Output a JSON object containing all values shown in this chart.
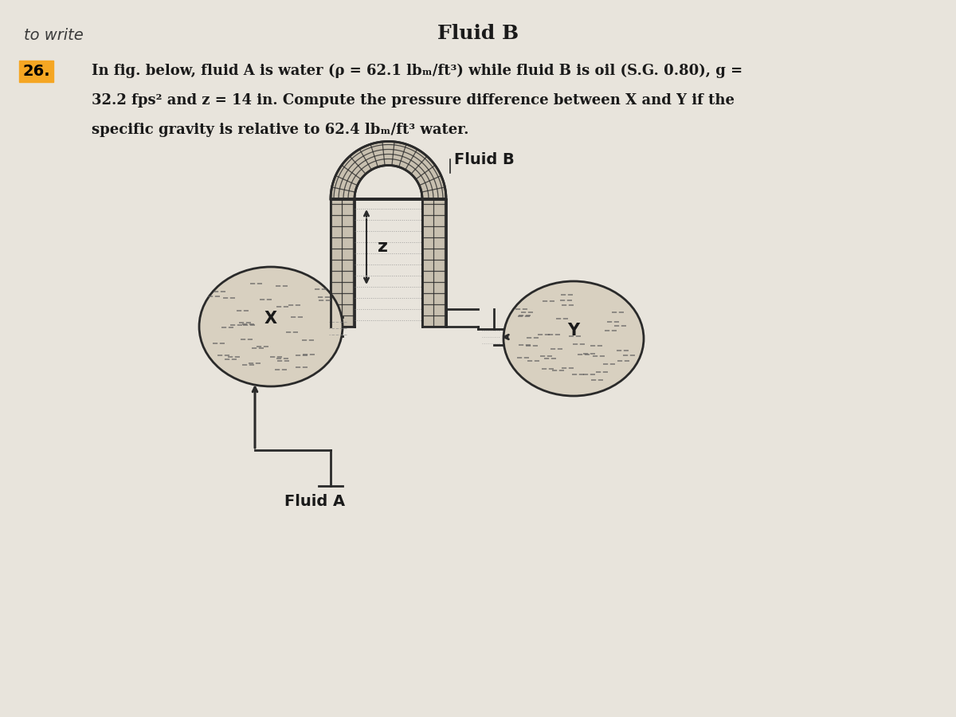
{
  "bg_color": "#e8e4dc",
  "title_top": "Fluid B",
  "handwriting_text": "to write",
  "problem_number": "26.",
  "problem_text_line1": "In fig. below, fluid A is water (ρ = 62.1 lbₘ/ft³) while fluid B is oil (S.G. 0.80), g =",
  "problem_text_line2": "32.2 fps² and z = 14 in. Compute the pressure difference between X and Y if the",
  "problem_text_line3": "specific gravity is relative to 62.4 lbₘ/ft³ water.",
  "diagram_label_fluid_b": "Fluid B",
  "diagram_label_fluid_a": "Fluid A",
  "diagram_label_z": "z",
  "diagram_label_x": "X",
  "diagram_label_y": "Y",
  "line_color": "#1a1a1a",
  "text_color": "#1a1a1a",
  "wall_fill": "#c8c0b0",
  "bg_paper": "#e8e4dc"
}
